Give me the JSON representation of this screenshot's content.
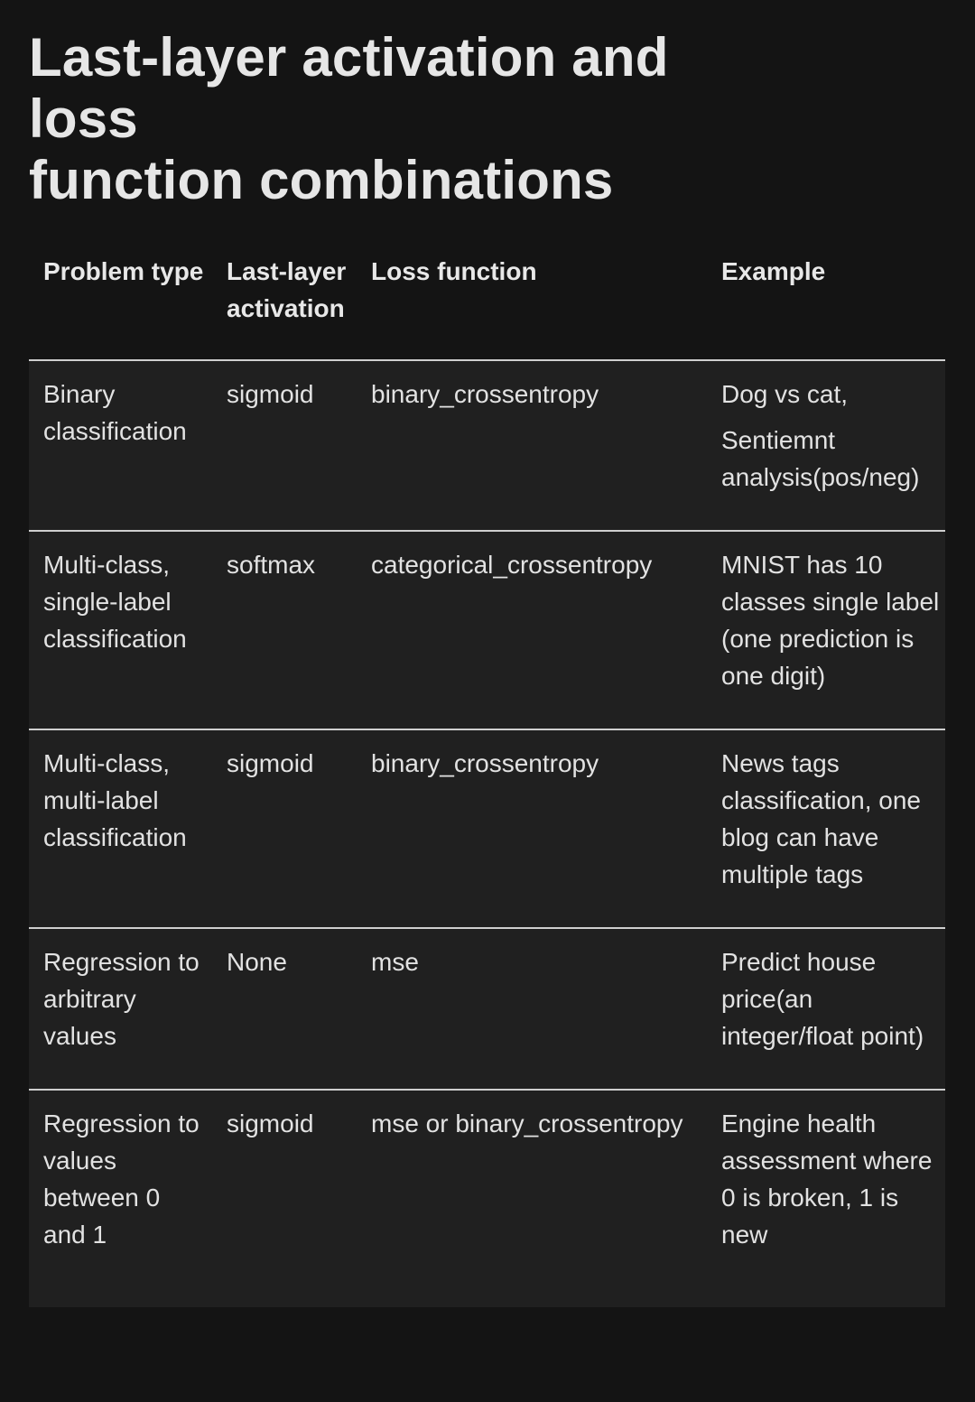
{
  "title_lines": [
    "Last-layer activation and",
    "loss",
    "function combinations"
  ],
  "headers": {
    "problem_type": "Problem type",
    "activation": "Last-layer activation",
    "loss": "Loss function",
    "example": "Example"
  },
  "rows": [
    {
      "problem_type": "Binary classification",
      "activation": "sigmoid",
      "loss": "binary_crossentropy",
      "example": [
        "Dog vs cat,",
        "Sentiemnt analysis(pos/neg)"
      ]
    },
    {
      "problem_type": "Multi-class, single-label classification",
      "activation": "softmax",
      "loss": "categorical_crossentropy",
      "example": [
        "MNIST has 10 classes single label (one prediction is one digit)"
      ]
    },
    {
      "problem_type": "Multi-class, multi-label classification",
      "activation": "sigmoid",
      "loss": "binary_crossentropy",
      "example": [
        "News tags classification, one blog can have multiple tags"
      ]
    },
    {
      "problem_type": "Regression to arbitrary values",
      "activation": "None",
      "loss": "mse",
      "example": [
        "Predict house price(an integer/float point)"
      ]
    },
    {
      "problem_type": "Regression to values between 0 and 1",
      "activation": "sigmoid",
      "loss": "mse or binary_crossentropy",
      "example": [
        "Engine health assessment where 0 is broken, 1 is new"
      ]
    }
  ]
}
